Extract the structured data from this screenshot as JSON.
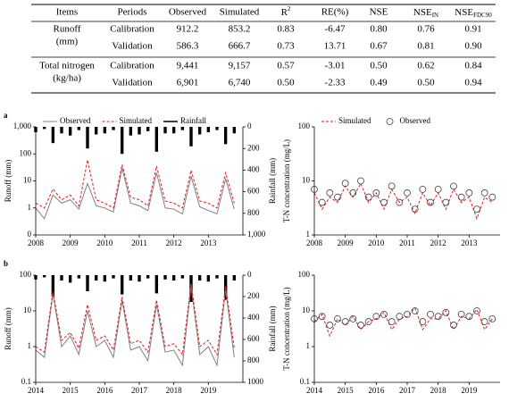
{
  "table": {
    "header": [
      "Items",
      "Periods",
      "Observed",
      "Simulated",
      {
        "text": "R",
        "sup": "2"
      },
      "RE(%)",
      "NSE",
      {
        "text": "NSE",
        "sub": "IN"
      },
      {
        "text": "NSE",
        "sub": "FDC90"
      }
    ],
    "groups": [
      {
        "item": [
          "Runoff",
          "(mm)"
        ],
        "rows": [
          [
            "Calibration",
            "912.2",
            "853.2",
            "0.83",
            "-6.47",
            "0.80",
            "0.76",
            "0.91"
          ],
          [
            "Validation",
            "586.3",
            "666.7",
            "0.73",
            "13.71",
            "0.67",
            "0.81",
            "0.90"
          ]
        ]
      },
      {
        "item": [
          "Total  nitrogen",
          "(kg/ha)"
        ],
        "rows": [
          [
            "Calibration",
            "9,441",
            "9,157",
            "0.57",
            "-3.01",
            "0.50",
            "0.62",
            "0.84"
          ],
          [
            "Validation",
            "6,901",
            "6,740",
            "0.50",
            "-2.33",
            "0.49",
            "0.50",
            "0.94"
          ]
        ]
      }
    ]
  },
  "chart_data": [
    {
      "type": "line",
      "panel": "a",
      "ylabel": "Runoff (mm)",
      "y2label": "Rainfall (mm)",
      "log_y": true,
      "legend": "top-left",
      "xlim": [
        2008,
        2014
      ],
      "xticks": [
        2008,
        2009,
        2010,
        2011,
        2012,
        2013
      ],
      "ylim": [
        0.1,
        1000
      ],
      "yticks": [
        {
          "value": 1000,
          "label": "1,000"
        },
        100,
        10,
        1,
        {
          "value": 0.1,
          "label": "0"
        }
      ],
      "y2lim": [
        0,
        1000
      ],
      "y2_inverted": true,
      "y2ticks": [
        0,
        200,
        400,
        600,
        800,
        {
          "value": 1000,
          "label": "1,000"
        }
      ],
      "x": [
        2008,
        2008.25,
        2008.5,
        2008.75,
        2009,
        2009.25,
        2009.5,
        2009.75,
        2010,
        2010.25,
        2010.5,
        2010.75,
        2011,
        2011.25,
        2011.5,
        2011.75,
        2012,
        2012.25,
        2012.5,
        2012.75,
        2013,
        2013.25,
        2013.5,
        2013.75
      ],
      "series": [
        {
          "name": "Observed",
          "color": "#808080",
          "mark": "line",
          "dash": false,
          "values": [
            1,
            0.4,
            3,
            1.5,
            2,
            0.9,
            8,
            1.2,
            1,
            0.7,
            30,
            1.5,
            1.2,
            0.8,
            20,
            1,
            0.9,
            0.6,
            15,
            1.1,
            0.8,
            0.6,
            12,
            0.9
          ]
        },
        {
          "name": "Simulated",
          "color": "#e31a1c",
          "mark": "line",
          "dash": true,
          "values": [
            1.5,
            1,
            5,
            2,
            3,
            1.2,
            60,
            2,
            1.5,
            1,
            40,
            2.5,
            2,
            1.2,
            35,
            1.8,
            1.5,
            1,
            25,
            1.8,
            1.5,
            1,
            20,
            1.5
          ]
        },
        {
          "name": "Rainfall",
          "color": "#000000",
          "mark": "bar",
          "axis": "y2",
          "values": [
            50,
            20,
            150,
            60,
            80,
            30,
            200,
            70,
            60,
            30,
            250,
            80,
            70,
            40,
            230,
            60,
            60,
            30,
            180,
            70,
            50,
            30,
            160,
            60
          ]
        }
      ]
    },
    {
      "type": "line",
      "ylabel": "T-N concentration (mg/L)",
      "log_y": true,
      "legend": "top-left",
      "xlim": [
        2008,
        2014
      ],
      "xticks": [
        2008,
        2009,
        2010,
        2011,
        2012,
        2013
      ],
      "ylim": [
        1,
        100
      ],
      "yticks": [
        100,
        10,
        1
      ],
      "x": [
        2008,
        2008.25,
        2008.5,
        2008.75,
        2009,
        2009.25,
        2009.5,
        2009.75,
        2010,
        2010.25,
        2010.5,
        2010.75,
        2011,
        2011.25,
        2011.5,
        2011.75,
        2012,
        2012.25,
        2012.5,
        2012.75,
        2013,
        2013.25,
        2013.5,
        2013.75
      ],
      "series": [
        {
          "name": "Simulated",
          "color": "#e31a1c",
          "mark": "line",
          "dash": true,
          "values": [
            6,
            3,
            5,
            4,
            8,
            5,
            9,
            4,
            6,
            3,
            7,
            4,
            5,
            2.5,
            6,
            3.5,
            6,
            3,
            7,
            4,
            5,
            2,
            5,
            4
          ]
        },
        {
          "name": "Observed",
          "color": "#404040",
          "mark": "circle",
          "values": [
            7,
            4,
            6,
            5,
            9,
            6,
            10,
            5,
            6,
            4,
            8,
            4,
            6,
            3,
            7,
            4,
            7,
            4,
            8,
            5,
            6,
            3,
            6,
            5
          ]
        }
      ]
    },
    {
      "type": "line",
      "panel": "b",
      "ylabel": "Runoff (mm)",
      "y2label": "Rainfall (mm)",
      "log_y": true,
      "xlim": [
        2014,
        2020
      ],
      "xticks": [
        2014,
        2015,
        2016,
        2017,
        2018,
        2019
      ],
      "ylim": [
        0.1,
        100
      ],
      "yticks": [
        100,
        10,
        1,
        0.1
      ],
      "y2lim": [
        0,
        1000
      ],
      "y2_inverted": true,
      "y2ticks": [
        0,
        200,
        400,
        600,
        800,
        1000
      ],
      "x": [
        2014,
        2014.25,
        2014.5,
        2014.75,
        2015,
        2015.25,
        2015.5,
        2015.75,
        2016,
        2016.25,
        2016.5,
        2016.75,
        2017,
        2017.25,
        2017.5,
        2017.75,
        2018,
        2018.25,
        2018.5,
        2018.75,
        2019,
        2019.25,
        2019.5,
        2019.75
      ],
      "series": [
        {
          "name": "Observed",
          "color": "#808080",
          "mark": "line",
          "dash": false,
          "values": [
            0.8,
            0.5,
            30,
            1,
            2,
            0.6,
            10,
            1,
            1.5,
            0.5,
            20,
            0.8,
            1,
            0.4,
            15,
            0.7,
            0.8,
            0.3,
            50,
            0.6,
            1,
            0.3,
            40,
            0.5
          ]
        },
        {
          "name": "Simulated",
          "color": "#e31a1c",
          "mark": "line",
          "dash": true,
          "values": [
            1,
            0.7,
            35,
            1.5,
            2.5,
            0.9,
            15,
            1.5,
            2,
            0.8,
            25,
            1.2,
            1.5,
            0.7,
            20,
            1,
            1.2,
            0.6,
            60,
            1,
            1.5,
            0.6,
            50,
            0.9
          ]
        },
        {
          "name": "Rainfall",
          "color": "#000000",
          "mark": "bar",
          "axis": "y2",
          "values": [
            40,
            20,
            200,
            50,
            70,
            30,
            150,
            50,
            60,
            30,
            180,
            50,
            60,
            30,
            170,
            40,
            50,
            30,
            250,
            50,
            60,
            30,
            230,
            50
          ]
        }
      ]
    },
    {
      "type": "line",
      "ylabel": "T-N concentration (mg/L)",
      "log_y": true,
      "xlim": [
        2014,
        2020
      ],
      "xticks": [
        2014,
        2015,
        2016,
        2017,
        2018,
        2019
      ],
      "ylim": [
        0.1,
        100
      ],
      "yticks": [
        100,
        10,
        1,
        0.1
      ],
      "x": [
        2014,
        2014.25,
        2014.5,
        2014.75,
        2015,
        2015.25,
        2015.5,
        2015.75,
        2016,
        2016.25,
        2016.5,
        2016.75,
        2017,
        2017.25,
        2017.5,
        2017.75,
        2018,
        2018.25,
        2018.5,
        2018.75,
        2019,
        2019.25,
        2019.5,
        2019.75
      ],
      "series": [
        {
          "name": "Simulated",
          "color": "#e31a1c",
          "mark": "line",
          "dash": true,
          "values": [
            5,
            8,
            2,
            6,
            4,
            7,
            3,
            5,
            6,
            9,
            3,
            6,
            7,
            12,
            3,
            6,
            6,
            10,
            3,
            7,
            6,
            11,
            3,
            6
          ]
        },
        {
          "name": "Observed",
          "color": "#404040",
          "mark": "circle",
          "values": [
            6,
            7,
            4,
            6,
            5,
            6,
            4,
            5,
            7,
            8,
            5,
            7,
            8,
            10,
            5,
            8,
            7,
            9,
            4,
            8,
            7,
            10,
            5,
            6
          ]
        }
      ]
    }
  ]
}
